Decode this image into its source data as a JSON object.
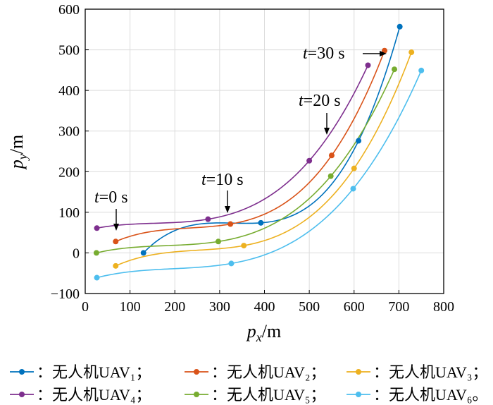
{
  "chart_data": {
    "type": "line",
    "xlabel": "p_x/m",
    "ylabel": "p_y/m",
    "xlim": [
      0,
      800
    ],
    "ylim": [
      -100,
      600
    ],
    "x_ticks": [
      "0",
      "100",
      "200",
      "300",
      "400",
      "500",
      "600",
      "700",
      "800"
    ],
    "y_ticks": [
      "-100",
      "0",
      "100",
      "200",
      "300",
      "400",
      "500",
      "600"
    ],
    "grid": true,
    "annotations": [
      {
        "text": "t=0 s",
        "x": 70,
        "y": 95
      },
      {
        "text": "t=10 s",
        "x": 322,
        "y": 110
      },
      {
        "text": "t=20 s",
        "x": 535,
        "y": 300
      },
      {
        "text": "t=30 s",
        "x": 652,
        "y": 497
      }
    ],
    "series": [
      {
        "name": "：无人机UAV₁；",
        "color": "#0072BD",
        "marker_x": [
          130,
          392,
          610,
          702
        ],
        "marker_y": [
          0,
          74,
          276,
          557
        ]
      },
      {
        "name": "：无人机UAV₂；",
        "color": "#D95319",
        "marker_x": [
          68,
          324,
          550,
          668
        ],
        "marker_y": [
          28,
          71,
          240,
          498
        ]
      },
      {
        "name": "：无人机UAV₃；",
        "color": "#EDB120",
        "marker_x": [
          68,
          354,
          600,
          728
        ],
        "marker_y": [
          -32,
          18,
          208,
          494
        ]
      },
      {
        "name": "：无人机UAV₄；",
        "color": "#7E2F8E",
        "marker_x": [
          26,
          274,
          500,
          631
        ],
        "marker_y": [
          61,
          83,
          227,
          462
        ]
      },
      {
        "name": "：无人机UAV₅；",
        "color": "#77AC30",
        "marker_x": [
          25,
          297,
          548,
          690
        ],
        "marker_y": [
          0,
          28,
          189,
          452
        ]
      },
      {
        "name": "：无人机UAV₆。",
        "color": "#4DBEEE",
        "marker_x": [
          26,
          326,
          598,
          750
        ],
        "marker_y": [
          -61,
          -26,
          158,
          449
        ]
      }
    ]
  }
}
